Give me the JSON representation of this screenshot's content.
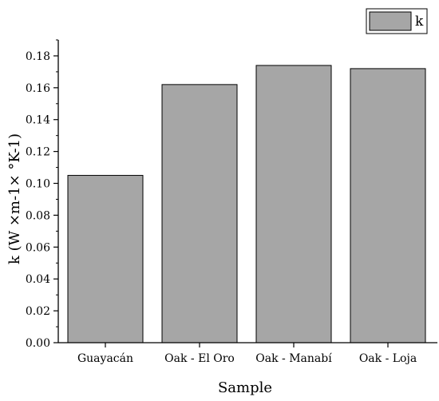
{
  "chart_data": {
    "type": "bar",
    "categories": [
      "Guayacán",
      "Oak - El Oro",
      "Oak - Manabí",
      "Oak - Loja"
    ],
    "series": [
      {
        "name": "k",
        "values": [
          0.105,
          0.162,
          0.174,
          0.172
        ]
      }
    ],
    "xlabel": "Sample",
    "ylabel": "k (W ×m-1× °K-1)",
    "ylim": [
      0,
      0.19
    ],
    "yticks": [
      "0.00",
      "0.02",
      "0.04",
      "0.06",
      "0.08",
      "0.10",
      "0.12",
      "0.14",
      "0.16",
      "0.18"
    ],
    "legend_position": "top-right",
    "grid": false,
    "bar_color": "#a6a6a6",
    "bar_edge_color": "#000000"
  }
}
